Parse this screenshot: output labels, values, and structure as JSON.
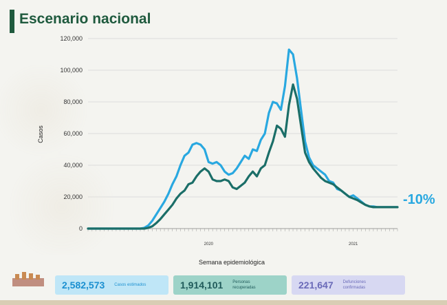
{
  "title": "Escenario nacional",
  "colors": {
    "estimated": "#29a8e0",
    "confirmed": "#1b6e68",
    "accent": "#1f5a3e"
  },
  "chart_data": {
    "type": "line",
    "ylabel": "Casos",
    "xlabel": "Semana epidemiológica",
    "ylim": [
      0,
      120000
    ],
    "yticks": [
      0,
      20000,
      40000,
      60000,
      80000,
      100000,
      120000
    ],
    "ytick_labels": [
      "0",
      "20,000",
      "40,000",
      "60,000",
      "80,000",
      "100,000",
      "120,000"
    ],
    "year_labels": [
      {
        "label": "2020",
        "week": 30
      },
      {
        "label": "2021",
        "week": 66
      }
    ],
    "weeks": 78,
    "annotation": "-10%",
    "series": [
      {
        "key": "estimated",
        "values": [
          0,
          0,
          0,
          0,
          0,
          0,
          0,
          0,
          0,
          0,
          0,
          0,
          0,
          0,
          500,
          2000,
          5000,
          9000,
          13000,
          17000,
          22000,
          28000,
          33000,
          40000,
          46000,
          48000,
          53000,
          54000,
          53000,
          50000,
          42000,
          41000,
          42000,
          40000,
          36000,
          34000,
          35000,
          38000,
          42000,
          46000,
          44000,
          50000,
          49000,
          56000,
          60000,
          73000,
          80000,
          79000,
          75000,
          90000,
          113000,
          110000,
          95000,
          75000,
          55000,
          45000,
          40000,
          38000,
          36000,
          34000,
          30000,
          29000,
          25000,
          24000,
          22000,
          20000,
          21000,
          19000,
          17000,
          15000,
          14000,
          14000,
          13500,
          13500,
          13500,
          13500,
          13500,
          13500
        ]
      },
      {
        "key": "confirmed",
        "values": [
          0,
          0,
          0,
          0,
          0,
          0,
          0,
          0,
          0,
          0,
          0,
          0,
          0,
          0,
          0,
          500,
          1500,
          3500,
          6000,
          9000,
          12000,
          15000,
          19000,
          22000,
          24000,
          28000,
          29000,
          33000,
          36000,
          38000,
          36000,
          31000,
          30000,
          30000,
          31000,
          30000,
          26000,
          25000,
          27000,
          29000,
          33000,
          36000,
          33000,
          38000,
          40000,
          48000,
          55000,
          65000,
          63000,
          58000,
          78000,
          91000,
          82000,
          65000,
          48000,
          42000,
          38000,
          35000,
          32000,
          30000,
          29000,
          28000,
          26000,
          24000,
          22000,
          20000,
          19000,
          18000,
          16500,
          15000,
          14000,
          13500,
          13500,
          13500,
          13500,
          13500,
          13500,
          13500
        ]
      }
    ]
  },
  "stats": [
    {
      "value": "2,582,573",
      "label": "Casos estimados"
    },
    {
      "value": "1,914,101",
      "label": "Personas recuperadas"
    },
    {
      "value": "221,647",
      "label": "Defunciones confirmadas"
    }
  ]
}
